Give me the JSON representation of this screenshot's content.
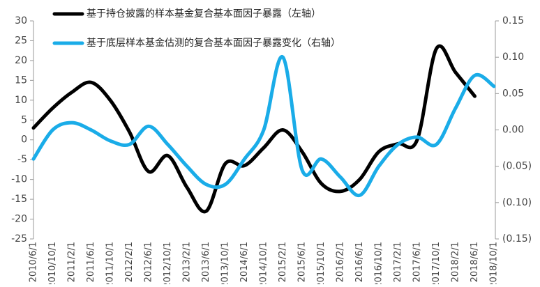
{
  "chart_data": {
    "type": "line",
    "categories": [
      "2010/6/1",
      "2010/10/1",
      "2011/2/1",
      "2011/6/1",
      "2011/10/1",
      "2012/2/1",
      "2012/6/1",
      "2012/10/1",
      "2013/2/1",
      "2013/6/1",
      "2013/10/1",
      "2014/6/1",
      "2014/10/1",
      "2015/2/1",
      "2015/6/1",
      "2015/10/1",
      "2016/2/1",
      "2016/6/1",
      "2016/10/1",
      "2017/2/1",
      "2017/6/1",
      "2017/10/1",
      "2018/2/1",
      "2018/6/1",
      "2018/10/1"
    ],
    "series": [
      {
        "name": "基于持仓披露的样本基金复合基本面因子暴露（左轴）",
        "color": "#000000",
        "values": [
          3,
          8,
          12,
          14.5,
          10,
          2,
          -8,
          -4,
          -12,
          -18,
          -6,
          -6.5,
          -2,
          2.5,
          -3,
          -11,
          -13,
          -10,
          -3,
          -1,
          0,
          23,
          17,
          11,
          null
        ]
      },
      {
        "name": "基于底层样本基金估测的复合基本面因子暴露变化（右轴）",
        "color": "#1aace8",
        "axis": "y2",
        "values": [
          -0.04,
          0,
          0.01,
          0,
          -0.015,
          -0.02,
          0.005,
          -0.02,
          -0.05,
          -0.075,
          -0.075,
          -0.04,
          0,
          0.1,
          -0.055,
          -0.04,
          -0.065,
          -0.09,
          -0.05,
          -0.02,
          -0.01,
          -0.02,
          0.03,
          0.075,
          0.06
        ]
      }
    ],
    "ylim": [
      -25,
      30
    ],
    "yticks": [
      -25,
      -20,
      -15,
      -10,
      -5,
      0,
      5,
      10,
      15,
      20,
      25,
      30
    ],
    "y2lim": [
      -0.15,
      0.15
    ],
    "y2ticks": [
      {
        "value": -0.15,
        "label": "(0.15)"
      },
      {
        "value": -0.1,
        "label": "(0.10)"
      },
      {
        "value": -0.05,
        "label": "(0.05)"
      },
      {
        "value": 0,
        "label": "0.00"
      },
      0.05,
      {
        "value": 0.1,
        "label": "0.10"
      },
      0.15
    ],
    "legend": "top"
  }
}
